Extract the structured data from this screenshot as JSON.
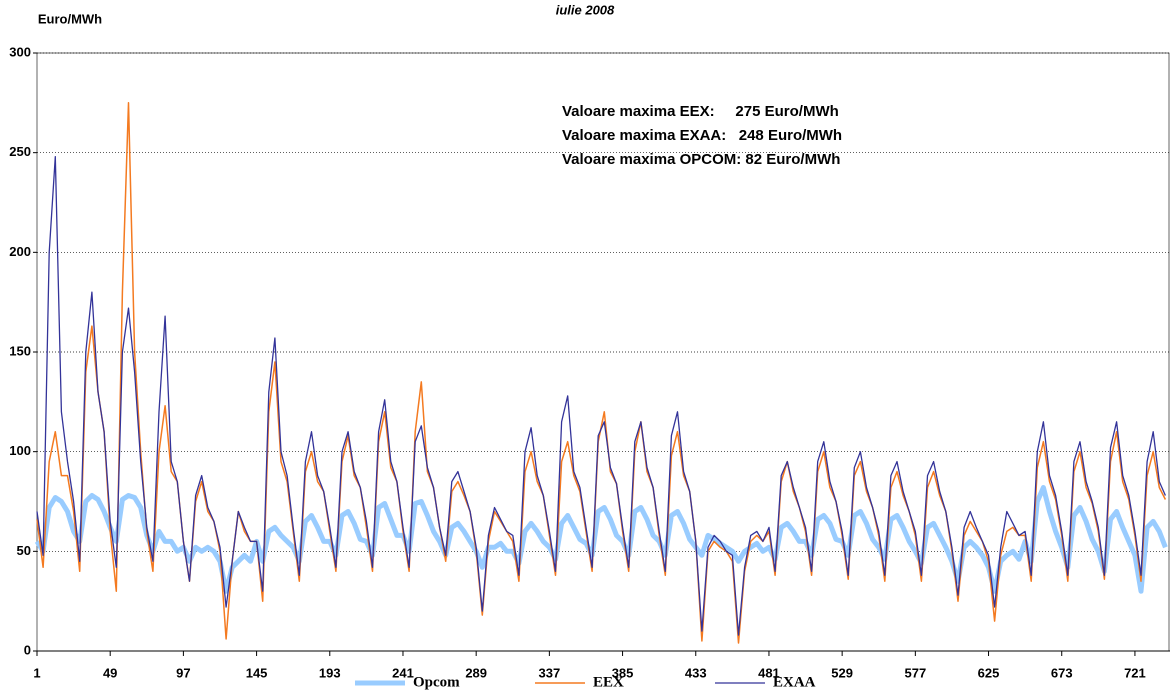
{
  "chart_data": {
    "type": "line",
    "title": "iulie 2008",
    "ylabel": "Euro/MWh",
    "xlim": [
      1,
      744
    ],
    "xticks": [
      1,
      49,
      97,
      145,
      193,
      241,
      289,
      337,
      385,
      433,
      481,
      529,
      577,
      625,
      673,
      721
    ],
    "ylim": [
      0,
      300
    ],
    "yticks": [
      0,
      50,
      100,
      150,
      200,
      250,
      300
    ],
    "grid": true,
    "legend": "bottom",
    "annotations": [
      {
        "text": "Valoare maxima EEX:     275 Euro/MWh",
        "color": "#f47a20"
      },
      {
        "text": "Valoare maxima EXAA:   248 Euro/MWh",
        "color": "#333399"
      },
      {
        "text": "Valoare maxima OPCOM: 82 Euro/MWh",
        "color": "#99ccff"
      }
    ],
    "x": [
      1,
      5,
      9,
      13,
      17,
      21,
      25,
      29,
      33,
      37,
      41,
      45,
      49,
      53,
      57,
      61,
      65,
      69,
      73,
      77,
      81,
      85,
      89,
      93,
      97,
      101,
      105,
      109,
      113,
      117,
      121,
      125,
      129,
      133,
      137,
      141,
      145,
      149,
      153,
      157,
      161,
      165,
      169,
      173,
      177,
      181,
      185,
      189,
      193,
      197,
      201,
      205,
      209,
      213,
      217,
      221,
      225,
      229,
      233,
      237,
      241,
      245,
      249,
      253,
      257,
      261,
      265,
      269,
      273,
      277,
      281,
      285,
      289,
      293,
      297,
      301,
      305,
      309,
      313,
      317,
      321,
      325,
      329,
      333,
      337,
      341,
      345,
      349,
      353,
      357,
      361,
      365,
      369,
      373,
      377,
      381,
      385,
      389,
      393,
      397,
      401,
      405,
      409,
      413,
      417,
      421,
      425,
      429,
      433,
      437,
      441,
      445,
      449,
      453,
      457,
      461,
      465,
      469,
      473,
      477,
      481,
      485,
      489,
      493,
      497,
      501,
      505,
      509,
      513,
      517,
      521,
      525,
      529,
      533,
      537,
      541,
      545,
      549,
      553,
      557,
      561,
      565,
      569,
      573,
      577,
      581,
      585,
      589,
      593,
      597,
      601,
      605,
      609,
      613,
      617,
      621,
      625,
      629,
      633,
      637,
      641,
      645,
      649,
      653,
      657,
      661,
      665,
      669,
      673,
      677,
      681,
      685,
      689,
      693,
      697,
      701,
      705,
      709,
      713,
      717,
      721,
      725,
      729,
      733,
      737,
      741
    ],
    "series": [
      {
        "name": "Opcom",
        "color": "#99ccff",
        "values": [
          55,
          50,
          72,
          77,
          75,
          70,
          60,
          55,
          75,
          78,
          76,
          70,
          62,
          55,
          76,
          78,
          77,
          72,
          58,
          50,
          60,
          55,
          55,
          50,
          52,
          45,
          52,
          50,
          52,
          50,
          45,
          30,
          42,
          45,
          48,
          45,
          55,
          45,
          60,
          62,
          58,
          55,
          52,
          45,
          65,
          68,
          62,
          55,
          55,
          48,
          68,
          70,
          64,
          56,
          55,
          48,
          72,
          74,
          66,
          58,
          58,
          50,
          74,
          75,
          68,
          60,
          55,
          48,
          62,
          64,
          60,
          55,
          50,
          42,
          52,
          52,
          54,
          50,
          50,
          44,
          60,
          64,
          60,
          55,
          52,
          46,
          64,
          68,
          62,
          56,
          54,
          48,
          70,
          72,
          66,
          58,
          55,
          48,
          70,
          72,
          66,
          58,
          55,
          48,
          68,
          70,
          64,
          56,
          52,
          48,
          58,
          56,
          54,
          52,
          50,
          45,
          50,
          52,
          54,
          50,
          52,
          46,
          62,
          64,
          60,
          55,
          55,
          48,
          66,
          68,
          64,
          56,
          55,
          48,
          68,
          70,
          64,
          56,
          52,
          46,
          66,
          68,
          62,
          55,
          50,
          44,
          62,
          64,
          58,
          52,
          45,
          35,
          52,
          55,
          52,
          48,
          42,
          30,
          45,
          48,
          50,
          46,
          55,
          45,
          75,
          82,
          70,
          60,
          52,
          42,
          68,
          72,
          65,
          56,
          50,
          40,
          66,
          70,
          62,
          55,
          48,
          30,
          62,
          65,
          60,
          52
        ]
      },
      {
        "name": "EEX",
        "color": "#f47a20",
        "values": [
          66,
          42,
          95,
          110,
          88,
          88,
          70,
          40,
          140,
          163,
          130,
          110,
          60,
          30,
          180,
          275,
          150,
          100,
          60,
          40,
          100,
          123,
          90,
          85,
          55,
          35,
          75,
          85,
          70,
          65,
          50,
          6,
          45,
          70,
          60,
          55,
          55,
          25,
          120,
          145,
          95,
          85,
          60,
          35,
          90,
          100,
          85,
          80,
          60,
          40,
          95,
          108,
          88,
          82,
          62,
          40,
          105,
          120,
          92,
          85,
          60,
          40,
          110,
          135,
          90,
          82,
          62,
          45,
          80,
          85,
          78,
          70,
          50,
          18,
          55,
          70,
          65,
          60,
          55,
          35,
          90,
          100,
          85,
          78,
          58,
          38,
          95,
          105,
          88,
          80,
          60,
          40,
          105,
          120,
          90,
          84,
          60,
          40,
          100,
          115,
          90,
          82,
          58,
          38,
          98,
          110,
          88,
          80,
          55,
          5,
          50,
          55,
          52,
          50,
          45,
          4,
          40,
          55,
          58,
          55,
          60,
          38,
          85,
          95,
          80,
          72,
          60,
          38,
          90,
          100,
          82,
          75,
          58,
          36,
          88,
          95,
          80,
          72,
          58,
          35,
          82,
          90,
          78,
          70,
          58,
          35,
          82,
          90,
          78,
          70,
          50,
          25,
          58,
          65,
          60,
          55,
          45,
          15,
          48,
          60,
          62,
          58,
          58,
          35,
          92,
          105,
          85,
          76,
          58,
          35,
          90,
          100,
          82,
          74,
          60,
          36,
          95,
          110,
          85,
          76,
          58,
          35,
          88,
          100,
          82,
          76
        ]
      },
      {
        "name": "EXAA",
        "color": "#333399",
        "values": [
          70,
          48,
          200,
          248,
          120,
          95,
          75,
          45,
          150,
          180,
          130,
          110,
          65,
          42,
          150,
          172,
          140,
          95,
          62,
          45,
          120,
          168,
          95,
          85,
          55,
          35,
          78,
          88,
          72,
          65,
          52,
          22,
          45,
          70,
          62,
          55,
          55,
          30,
          130,
          157,
          100,
          88,
          62,
          38,
          95,
          110,
          88,
          80,
          62,
          42,
          100,
          110,
          90,
          82,
          65,
          42,
          110,
          126,
          95,
          85,
          62,
          42,
          105,
          113,
          92,
          82,
          62,
          48,
          85,
          90,
          80,
          70,
          52,
          20,
          58,
          72,
          66,
          60,
          58,
          38,
          100,
          112,
          88,
          78,
          60,
          40,
          115,
          128,
          90,
          82,
          62,
          42,
          108,
          115,
          92,
          84,
          62,
          42,
          105,
          115,
          92,
          82,
          60,
          40,
          108,
          120,
          90,
          80,
          55,
          10,
          52,
          58,
          55,
          50,
          48,
          8,
          42,
          58,
          60,
          55,
          62,
          40,
          88,
          95,
          82,
          72,
          62,
          40,
          95,
          105,
          85,
          75,
          60,
          38,
          92,
          100,
          82,
          72,
          60,
          38,
          88,
          95,
          80,
          70,
          60,
          38,
          88,
          95,
          80,
          70,
          52,
          28,
          62,
          70,
          62,
          55,
          48,
          22,
          52,
          70,
          64,
          58,
          60,
          38,
          100,
          115,
          88,
          78,
          60,
          38,
          95,
          105,
          85,
          75,
          62,
          38,
          102,
          115,
          88,
          78,
          60,
          38,
          95,
          110,
          85,
          78
        ]
      }
    ]
  }
}
